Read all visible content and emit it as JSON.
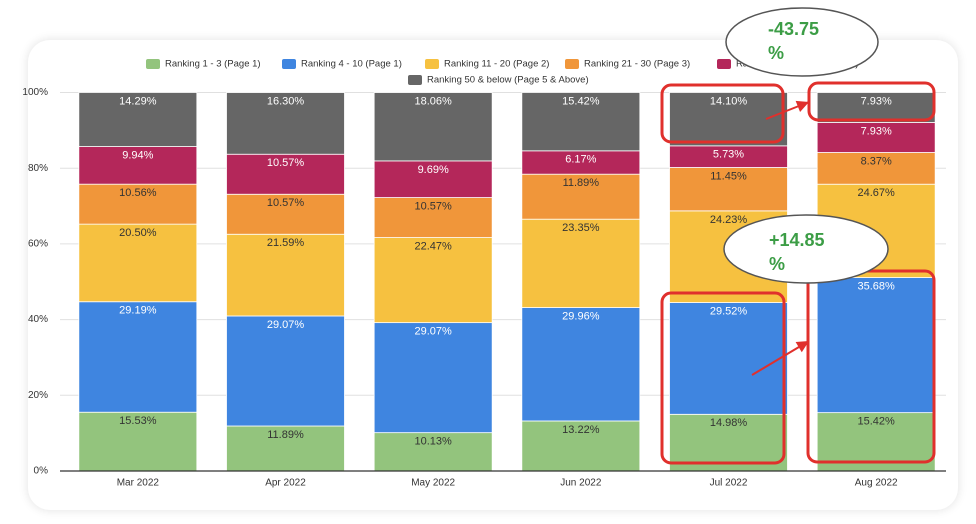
{
  "chart_data": {
    "type": "bar",
    "stacked": true,
    "normalized_percent": true,
    "categories": [
      "Mar 2022",
      "Apr 2022",
      "May 2022",
      "Jun 2022",
      "Jul 2022",
      "Aug 2022"
    ],
    "ylim": [
      0,
      100
    ],
    "yticks": [
      "0%",
      "20%",
      "40%",
      "60%",
      "80%",
      "100%"
    ],
    "grid": true,
    "legend_position": "top",
    "series": [
      {
        "name": "Ranking 1 - 3 (Page 1)",
        "color": "#93c47d",
        "values": [
          15.53,
          11.89,
          10.13,
          13.22,
          14.98,
          15.42
        ],
        "labels": [
          "15.53%",
          "11.89%",
          "10.13%",
          "13.22%",
          "14.98%",
          "15.42%"
        ]
      },
      {
        "name": "Ranking 4 - 10 (Page 1)",
        "color": "#3f85e0",
        "values": [
          29.19,
          29.07,
          29.07,
          29.96,
          29.52,
          35.68
        ],
        "labels": [
          "29.19%",
          "29.07%",
          "29.07%",
          "29.96%",
          "29.52%",
          "35.68%"
        ]
      },
      {
        "name": "Ranking 11 - 20 (Page 2)",
        "color": "#f6c140",
        "values": [
          20.5,
          21.59,
          22.47,
          23.35,
          24.23,
          24.67
        ],
        "labels": [
          "20.50%",
          "21.59%",
          "22.47%",
          "23.35%",
          "24.23%",
          "24.67%"
        ]
      },
      {
        "name": "Ranking 21 - 30 (Page 3)",
        "color": "#f0963a",
        "values": [
          10.56,
          10.57,
          10.57,
          11.89,
          11.45,
          8.37
        ],
        "labels": [
          "10.56%",
          "10.57%",
          "10.57%",
          "11.89%",
          "11.45%",
          "8.37%"
        ]
      },
      {
        "name": "Rank",
        "color": "#b4275a",
        "values": [
          9.94,
          10.57,
          9.69,
          6.17,
          5.73,
          7.93
        ],
        "labels": [
          "9.94%",
          "10.57%",
          "9.69%",
          "6.17%",
          "5.73%",
          "7.93%"
        ]
      },
      {
        "name": "Ranking 50 & below (Page 5 & Above)",
        "color": "#666666",
        "values": [
          14.29,
          16.3,
          18.06,
          15.42,
          14.1,
          7.93
        ],
        "labels": [
          "14.29%",
          "16.30%",
          "18.06%",
          "15.42%",
          "14.10%",
          "7.93%"
        ]
      }
    ],
    "annotations": [
      {
        "text_line1": "-43.75",
        "text_line2": "%",
        "color": "#3c9d46"
      },
      {
        "text_line1": "+14.85",
        "text_line2": "%",
        "color": "#3c9d46"
      }
    ],
    "legend_hidden_suffix": "5)"
  },
  "style": {
    "grid_color": "#e0e0e0",
    "axis_color": "#333333",
    "text_dark": "#333333",
    "text_light": "#ffffff",
    "highlight_color": "#e0302c",
    "annotation_color": "#3c9d46"
  }
}
